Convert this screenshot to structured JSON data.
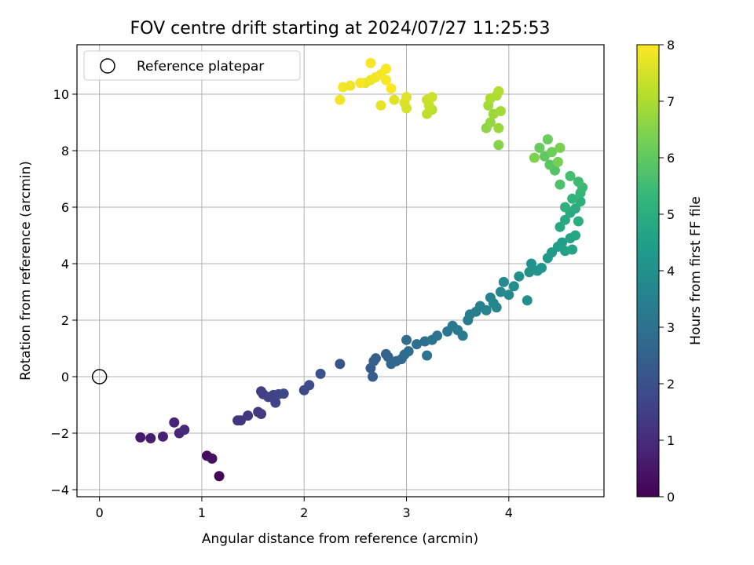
{
  "chart_data": {
    "type": "scatter",
    "title": "FOV centre drift starting at 2024/07/27 11:25:53",
    "xlabel": "Angular distance from reference (arcmin)",
    "ylabel": "Rotation from reference (arcmin)",
    "xlim": [
      -0.22,
      4.93
    ],
    "ylim": [
      -4.25,
      11.75
    ],
    "xticks": [
      0,
      1,
      2,
      3,
      4
    ],
    "yticks": [
      -4,
      -2,
      0,
      2,
      4,
      6,
      8,
      10
    ],
    "grid": true,
    "legend": {
      "position": "top-left",
      "entries": [
        "Reference platepar"
      ]
    },
    "reference_point": {
      "x": 0,
      "y": 0,
      "label": "Reference platepar"
    },
    "colorbar": {
      "label": "Hours from first FF file",
      "min": 0,
      "max": 8,
      "ticks": [
        0,
        1,
        2,
        3,
        4,
        5,
        6,
        7,
        8
      ],
      "colormap": "viridis"
    },
    "colormap_stops": [
      "#440154",
      "#482878",
      "#3e4989",
      "#31688e",
      "#26828e",
      "#1f9e89",
      "#35b779",
      "#6ece58",
      "#b5de2b",
      "#fde725"
    ],
    "points": [
      [
        1.17,
        -3.52,
        0.1
      ],
      [
        1.05,
        -2.8,
        0.25
      ],
      [
        1.1,
        -2.9,
        0.35
      ],
      [
        0.4,
        -2.15,
        0.55
      ],
      [
        0.5,
        -2.18,
        0.65
      ],
      [
        0.62,
        -2.12,
        0.75
      ],
      [
        0.73,
        -1.62,
        0.8
      ],
      [
        0.78,
        -2.0,
        0.85
      ],
      [
        0.83,
        -1.88,
        0.9
      ],
      [
        1.35,
        -1.55,
        1.2
      ],
      [
        1.38,
        -1.55,
        1.25
      ],
      [
        1.45,
        -1.38,
        1.3
      ],
      [
        1.55,
        -1.25,
        1.35
      ],
      [
        1.58,
        -1.32,
        1.4
      ],
      [
        1.58,
        -0.52,
        1.45
      ],
      [
        1.6,
        -0.62,
        1.5
      ],
      [
        1.65,
        -0.72,
        1.55
      ],
      [
        1.7,
        -0.65,
        1.6
      ],
      [
        1.72,
        -0.92,
        1.65
      ],
      [
        1.75,
        -0.62,
        1.7
      ],
      [
        1.8,
        -0.6,
        1.75
      ],
      [
        2.0,
        -0.48,
        1.85
      ],
      [
        2.05,
        -0.3,
        1.9
      ],
      [
        2.16,
        0.1,
        2.0
      ],
      [
        2.35,
        0.45,
        2.1
      ],
      [
        2.65,
        0.3,
        2.3
      ],
      [
        2.67,
        0.0,
        2.35
      ],
      [
        2.68,
        0.55,
        2.4
      ],
      [
        2.7,
        0.65,
        2.45
      ],
      [
        2.8,
        0.8,
        2.5
      ],
      [
        2.82,
        0.7,
        2.55
      ],
      [
        2.85,
        0.45,
        2.6
      ],
      [
        2.9,
        0.55,
        2.65
      ],
      [
        2.95,
        0.62,
        2.7
      ],
      [
        2.98,
        0.78,
        2.75
      ],
      [
        3.0,
        1.3,
        2.8
      ],
      [
        3.02,
        0.9,
        2.85
      ],
      [
        3.1,
        1.15,
        2.9
      ],
      [
        3.18,
        1.25,
        2.95
      ],
      [
        3.2,
        0.75,
        3.0
      ],
      [
        3.25,
        1.3,
        3.05
      ],
      [
        3.3,
        1.45,
        3.1
      ],
      [
        3.4,
        1.6,
        3.15
      ],
      [
        3.45,
        1.8,
        3.2
      ],
      [
        3.5,
        1.65,
        3.25
      ],
      [
        3.55,
        1.45,
        3.3
      ],
      [
        3.6,
        2.0,
        3.35
      ],
      [
        3.62,
        2.2,
        3.4
      ],
      [
        3.68,
        2.3,
        3.45
      ],
      [
        3.72,
        2.5,
        3.5
      ],
      [
        3.78,
        2.35,
        3.55
      ],
      [
        3.82,
        2.8,
        3.6
      ],
      [
        3.85,
        2.6,
        3.65
      ],
      [
        3.88,
        2.45,
        3.7
      ],
      [
        3.92,
        3.0,
        3.75
      ],
      [
        3.95,
        3.35,
        3.8
      ],
      [
        4.0,
        2.9,
        3.85
      ],
      [
        4.05,
        3.2,
        3.9
      ],
      [
        4.1,
        3.55,
        3.95
      ],
      [
        4.18,
        2.7,
        4.0
      ],
      [
        4.2,
        3.7,
        4.05
      ],
      [
        4.22,
        4.0,
        4.1
      ],
      [
        4.28,
        3.75,
        4.15
      ],
      [
        4.32,
        3.85,
        4.2
      ],
      [
        4.38,
        4.2,
        4.3
      ],
      [
        4.42,
        4.4,
        4.35
      ],
      [
        4.48,
        4.6,
        4.45
      ],
      [
        4.52,
        4.75,
        4.5
      ],
      [
        4.55,
        4.45,
        4.55
      ],
      [
        4.6,
        4.9,
        4.6
      ],
      [
        4.62,
        4.5,
        4.65
      ],
      [
        4.65,
        5.0,
        4.7
      ],
      [
        4.5,
        5.3,
        4.8
      ],
      [
        4.55,
        5.55,
        4.85
      ],
      [
        4.6,
        5.8,
        4.9
      ],
      [
        4.65,
        5.95,
        4.95
      ],
      [
        4.68,
        5.5,
        5.0
      ],
      [
        4.7,
        6.2,
        5.05
      ],
      [
        4.55,
        6.0,
        5.1
      ],
      [
        4.62,
        6.3,
        5.2
      ],
      [
        4.7,
        6.5,
        5.3
      ],
      [
        4.72,
        6.7,
        5.4
      ],
      [
        4.68,
        6.9,
        5.5
      ],
      [
        4.6,
        7.1,
        5.6
      ],
      [
        4.5,
        6.8,
        5.7
      ],
      [
        4.45,
        7.3,
        5.8
      ],
      [
        4.4,
        7.5,
        5.9
      ],
      [
        4.35,
        7.8,
        6.0
      ],
      [
        4.3,
        8.1,
        6.1
      ],
      [
        4.38,
        8.4,
        6.15
      ],
      [
        4.42,
        7.95,
        6.2
      ],
      [
        4.48,
        7.6,
        6.3
      ],
      [
        4.5,
        8.1,
        6.35
      ],
      [
        4.25,
        7.75,
        6.4
      ],
      [
        3.9,
        8.2,
        6.5
      ],
      [
        3.78,
        8.8,
        6.6
      ],
      [
        3.82,
        9.0,
        6.7
      ],
      [
        3.9,
        8.8,
        6.75
      ],
      [
        3.85,
        9.3,
        6.8
      ],
      [
        3.8,
        9.6,
        6.85
      ],
      [
        3.92,
        9.4,
        6.9
      ],
      [
        3.88,
        9.95,
        6.95
      ],
      [
        3.82,
        9.85,
        7.0
      ],
      [
        3.9,
        10.1,
        7.05
      ],
      [
        3.25,
        9.45,
        7.2
      ],
      [
        3.2,
        9.3,
        7.25
      ],
      [
        3.22,
        9.6,
        7.3
      ],
      [
        3.2,
        9.8,
        7.35
      ],
      [
        3.25,
        9.9,
        7.4
      ],
      [
        3.0,
        9.5,
        7.5
      ],
      [
        2.98,
        9.7,
        7.55
      ],
      [
        3.0,
        9.9,
        7.6
      ],
      [
        2.88,
        9.8,
        7.65
      ],
      [
        2.75,
        9.6,
        7.7
      ],
      [
        2.6,
        10.4,
        7.75
      ],
      [
        2.65,
        10.5,
        7.8
      ],
      [
        2.7,
        10.6,
        7.85
      ],
      [
        2.75,
        10.7,
        7.9
      ],
      [
        2.8,
        10.5,
        7.95
      ],
      [
        2.85,
        10.2,
        8.0
      ],
      [
        2.8,
        10.9,
        8.0
      ],
      [
        2.65,
        11.1,
        7.95
      ],
      [
        2.55,
        10.4,
        7.9
      ],
      [
        2.38,
        10.25,
        7.9
      ],
      [
        2.35,
        9.8,
        7.85
      ],
      [
        2.45,
        10.3,
        7.8
      ]
    ]
  }
}
